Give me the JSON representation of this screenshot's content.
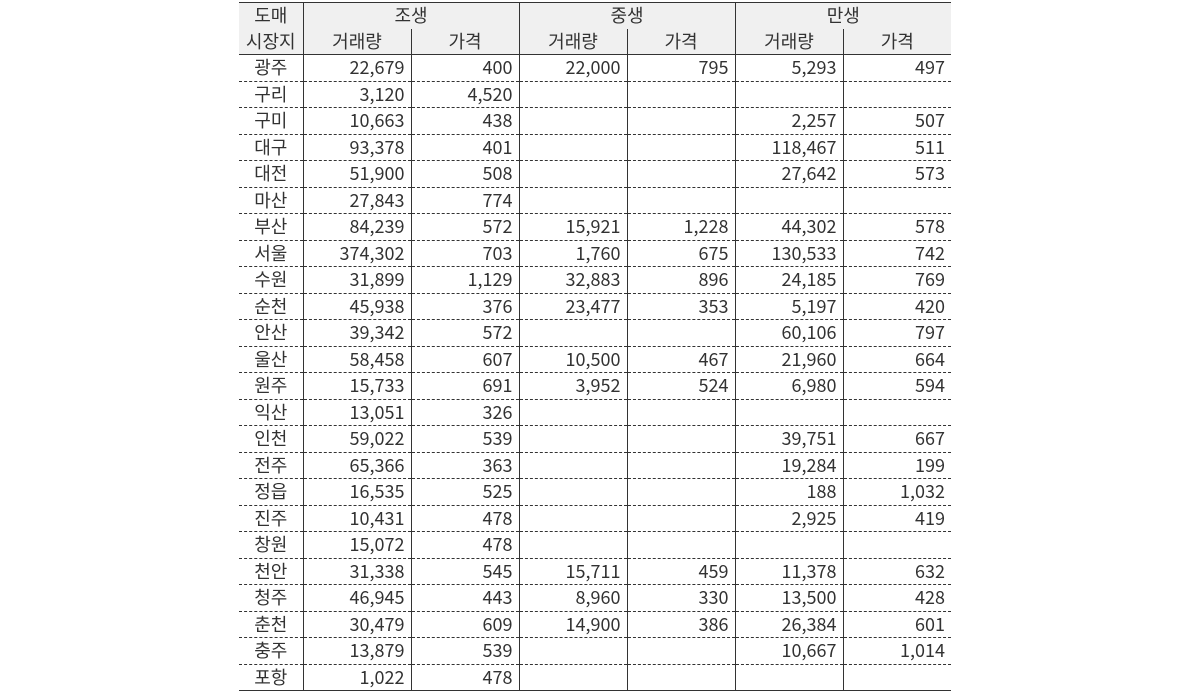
{
  "header": {
    "row_label_line1": "도매",
    "row_label_line2": "시장지",
    "group1": "조생",
    "group2": "중생",
    "group3": "만생",
    "sub_vol": "거래량",
    "sub_price": "가격"
  },
  "table": {
    "type": "table",
    "columns": [
      "도매시장지",
      "조생_거래량",
      "조생_가격",
      "중생_거래량",
      "중생_가격",
      "만생_거래량",
      "만생_가격"
    ],
    "colors": {
      "header_bg": "#f0f0f0",
      "border": "#333333",
      "text": "#323232",
      "background": "#ffffff"
    },
    "font_size": 18,
    "rows": [
      {
        "label": "광주",
        "v": [
          "22,679",
          "400",
          "22,000",
          "795",
          "5,293",
          "497"
        ]
      },
      {
        "label": "구리",
        "v": [
          "3,120",
          "4,520",
          "",
          "",
          "",
          ""
        ]
      },
      {
        "label": "구미",
        "v": [
          "10,663",
          "438",
          "",
          "",
          "2,257",
          "507"
        ]
      },
      {
        "label": "대구",
        "v": [
          "93,378",
          "401",
          "",
          "",
          "118,467",
          "511"
        ]
      },
      {
        "label": "대전",
        "v": [
          "51,900",
          "508",
          "",
          "",
          "27,642",
          "573"
        ]
      },
      {
        "label": "마산",
        "v": [
          "27,843",
          "774",
          "",
          "",
          "",
          ""
        ]
      },
      {
        "label": "부산",
        "v": [
          "84,239",
          "572",
          "15,921",
          "1,228",
          "44,302",
          "578"
        ]
      },
      {
        "label": "서울",
        "v": [
          "374,302",
          "703",
          "1,760",
          "675",
          "130,533",
          "742"
        ]
      },
      {
        "label": "수원",
        "v": [
          "31,899",
          "1,129",
          "32,883",
          "896",
          "24,185",
          "769"
        ]
      },
      {
        "label": "순천",
        "v": [
          "45,938",
          "376",
          "23,477",
          "353",
          "5,197",
          "420"
        ]
      },
      {
        "label": "안산",
        "v": [
          "39,342",
          "572",
          "",
          "",
          "60,106",
          "797"
        ]
      },
      {
        "label": "울산",
        "v": [
          "58,458",
          "607",
          "10,500",
          "467",
          "21,960",
          "664"
        ]
      },
      {
        "label": "원주",
        "v": [
          "15,733",
          "691",
          "3,952",
          "524",
          "6,980",
          "594"
        ]
      },
      {
        "label": "익산",
        "v": [
          "13,051",
          "326",
          "",
          "",
          "",
          ""
        ]
      },
      {
        "label": "인천",
        "v": [
          "59,022",
          "539",
          "",
          "",
          "39,751",
          "667"
        ]
      },
      {
        "label": "전주",
        "v": [
          "65,366",
          "363",
          "",
          "",
          "19,284",
          "199"
        ]
      },
      {
        "label": "정읍",
        "v": [
          "16,535",
          "525",
          "",
          "",
          "188",
          "1,032"
        ]
      },
      {
        "label": "진주",
        "v": [
          "10,431",
          "478",
          "",
          "",
          "2,925",
          "419"
        ]
      },
      {
        "label": "창원",
        "v": [
          "15,072",
          "478",
          "",
          "",
          "",
          ""
        ]
      },
      {
        "label": "천안",
        "v": [
          "31,338",
          "545",
          "15,711",
          "459",
          "11,378",
          "632"
        ]
      },
      {
        "label": "청주",
        "v": [
          "46,945",
          "443",
          "8,960",
          "330",
          "13,500",
          "428"
        ]
      },
      {
        "label": "춘천",
        "v": [
          "30,479",
          "609",
          "14,900",
          "386",
          "26,384",
          "601"
        ]
      },
      {
        "label": "충주",
        "v": [
          "13,879",
          "539",
          "",
          "",
          "10,667",
          "1,014"
        ]
      },
      {
        "label": "포항",
        "v": [
          "1,022",
          "478",
          "",
          "",
          "",
          ""
        ]
      }
    ]
  }
}
